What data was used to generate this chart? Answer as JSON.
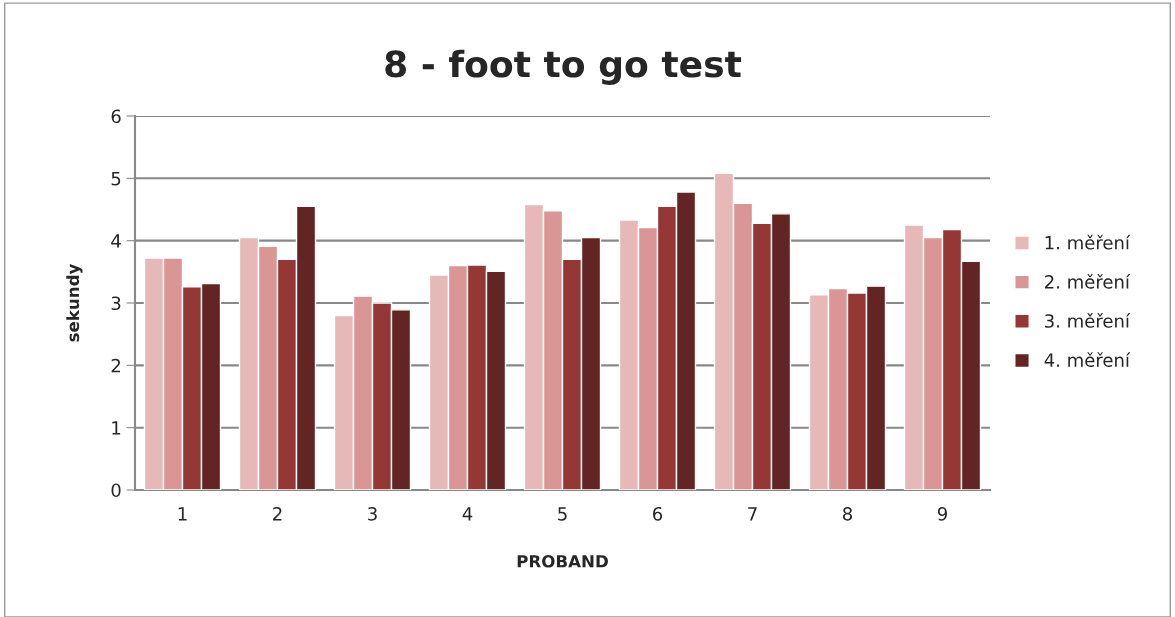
{
  "chart_data": {
    "type": "bar",
    "title": "8 - foot to go test",
    "xlabel": "PROBAND",
    "ylabel": "sekundy",
    "categories": [
      "1",
      "2",
      "3",
      "4",
      "5",
      "6",
      "7",
      "8",
      "9"
    ],
    "series": [
      {
        "name": "1. měření",
        "color": "#e6b8b7",
        "values": [
          3.72,
          4.05,
          2.8,
          3.45,
          4.58,
          4.33,
          5.08,
          3.13,
          4.25
        ]
      },
      {
        "name": "2. měření",
        "color": "#da9694",
        "values": [
          3.72,
          3.91,
          3.11,
          3.6,
          4.48,
          4.21,
          4.6,
          3.23,
          4.05
        ]
      },
      {
        "name": "3. měření",
        "color": "#953735",
        "values": [
          3.26,
          3.7,
          3.0,
          3.61,
          3.7,
          4.55,
          4.28,
          3.16,
          4.18
        ]
      },
      {
        "name": "4. měření",
        "color": "#632523",
        "values": [
          3.31,
          4.55,
          2.89,
          3.51,
          4.05,
          4.78,
          4.43,
          3.27,
          3.67
        ]
      }
    ],
    "ylim": [
      0,
      6
    ],
    "yticks": [
      0,
      1,
      2,
      3,
      4,
      5,
      6
    ],
    "grid": "y",
    "legend": "right"
  }
}
